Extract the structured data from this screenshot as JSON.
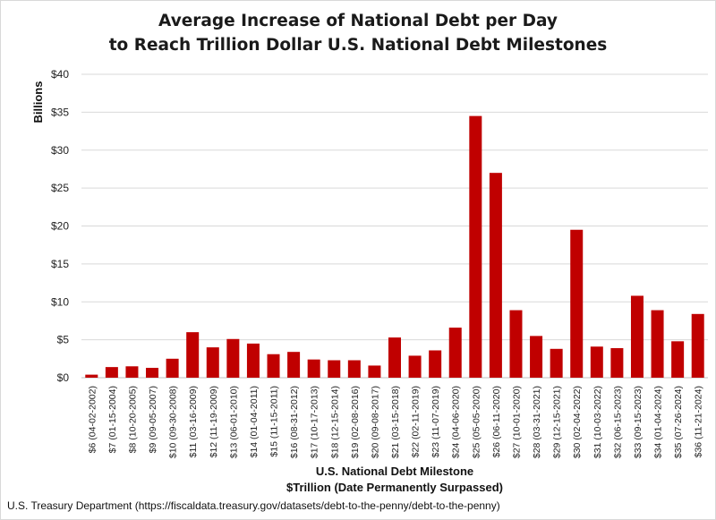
{
  "chart_data": {
    "type": "bar",
    "title_lines": [
      "Average Increase of National Debt per Day",
      "to Reach Trillion Dollar U.S. National Debt Milestones"
    ],
    "ylabel": "Billions",
    "xlabel_lines": [
      "U.S. National Debt Milestone",
      "$Trillion (Date Permanently Surpassed)"
    ],
    "ylim": [
      0,
      40
    ],
    "yticks": [
      0,
      5,
      10,
      15,
      20,
      25,
      30,
      35,
      40
    ],
    "ytick_labels": [
      "$0",
      "$5",
      "$10",
      "$15",
      "$20",
      "$25",
      "$30",
      "$35",
      "$40"
    ],
    "grid": true,
    "bar_color": "#c00000",
    "categories": [
      "$6 (04-02-2002)",
      "$7 (01-15-2004)",
      "$8 (10-20-2005)",
      "$9 (09-05-2007)",
      "$10 (09-30-2008)",
      "$11 (03-16-2009)",
      "$12 (11-19-2009)",
      "$13 (06-01-2010)",
      "$14 (01-04-2011)",
      "$15 (11-15-2011)",
      "$16 (08-31-2012)",
      "$17 (10-17-2013)",
      "$18 (12-15-2014)",
      "$19 (02-08-2016)",
      "$20 (09-08-2017)",
      "$21 (03-15-2018)",
      "$22 (02-11-2019)",
      "$23 (11-07-2019)",
      "$24 (04-06-2020)",
      "$25 (05-05-2020)",
      "$26 (06-11-2020)",
      "$27 (10-01-2020)",
      "$28 (03-31-2021)",
      "$29 (12-15-2021)",
      "$30 (02-04-2022)",
      "$31 (10-03-2022)",
      "$32 (06-15-2023)",
      "$33 (09-15-2023)",
      "$34 (01-04-2024)",
      "$35 (07-26-2024)",
      "$36 (11-21-2024)"
    ],
    "values": [
      0.4,
      1.4,
      1.5,
      1.3,
      2.5,
      6.0,
      4.0,
      5.1,
      4.5,
      3.1,
      3.4,
      2.4,
      2.3,
      2.3,
      1.6,
      5.3,
      2.9,
      3.6,
      6.6,
      34.5,
      27.0,
      8.9,
      5.5,
      3.8,
      19.5,
      4.1,
      3.9,
      10.8,
      8.9,
      4.8,
      8.4
    ]
  },
  "source_text": "U.S. Treasury Department (https://fiscaldata.treasury.gov/datasets/debt-to-the-penny/debt-to-the-penny)"
}
